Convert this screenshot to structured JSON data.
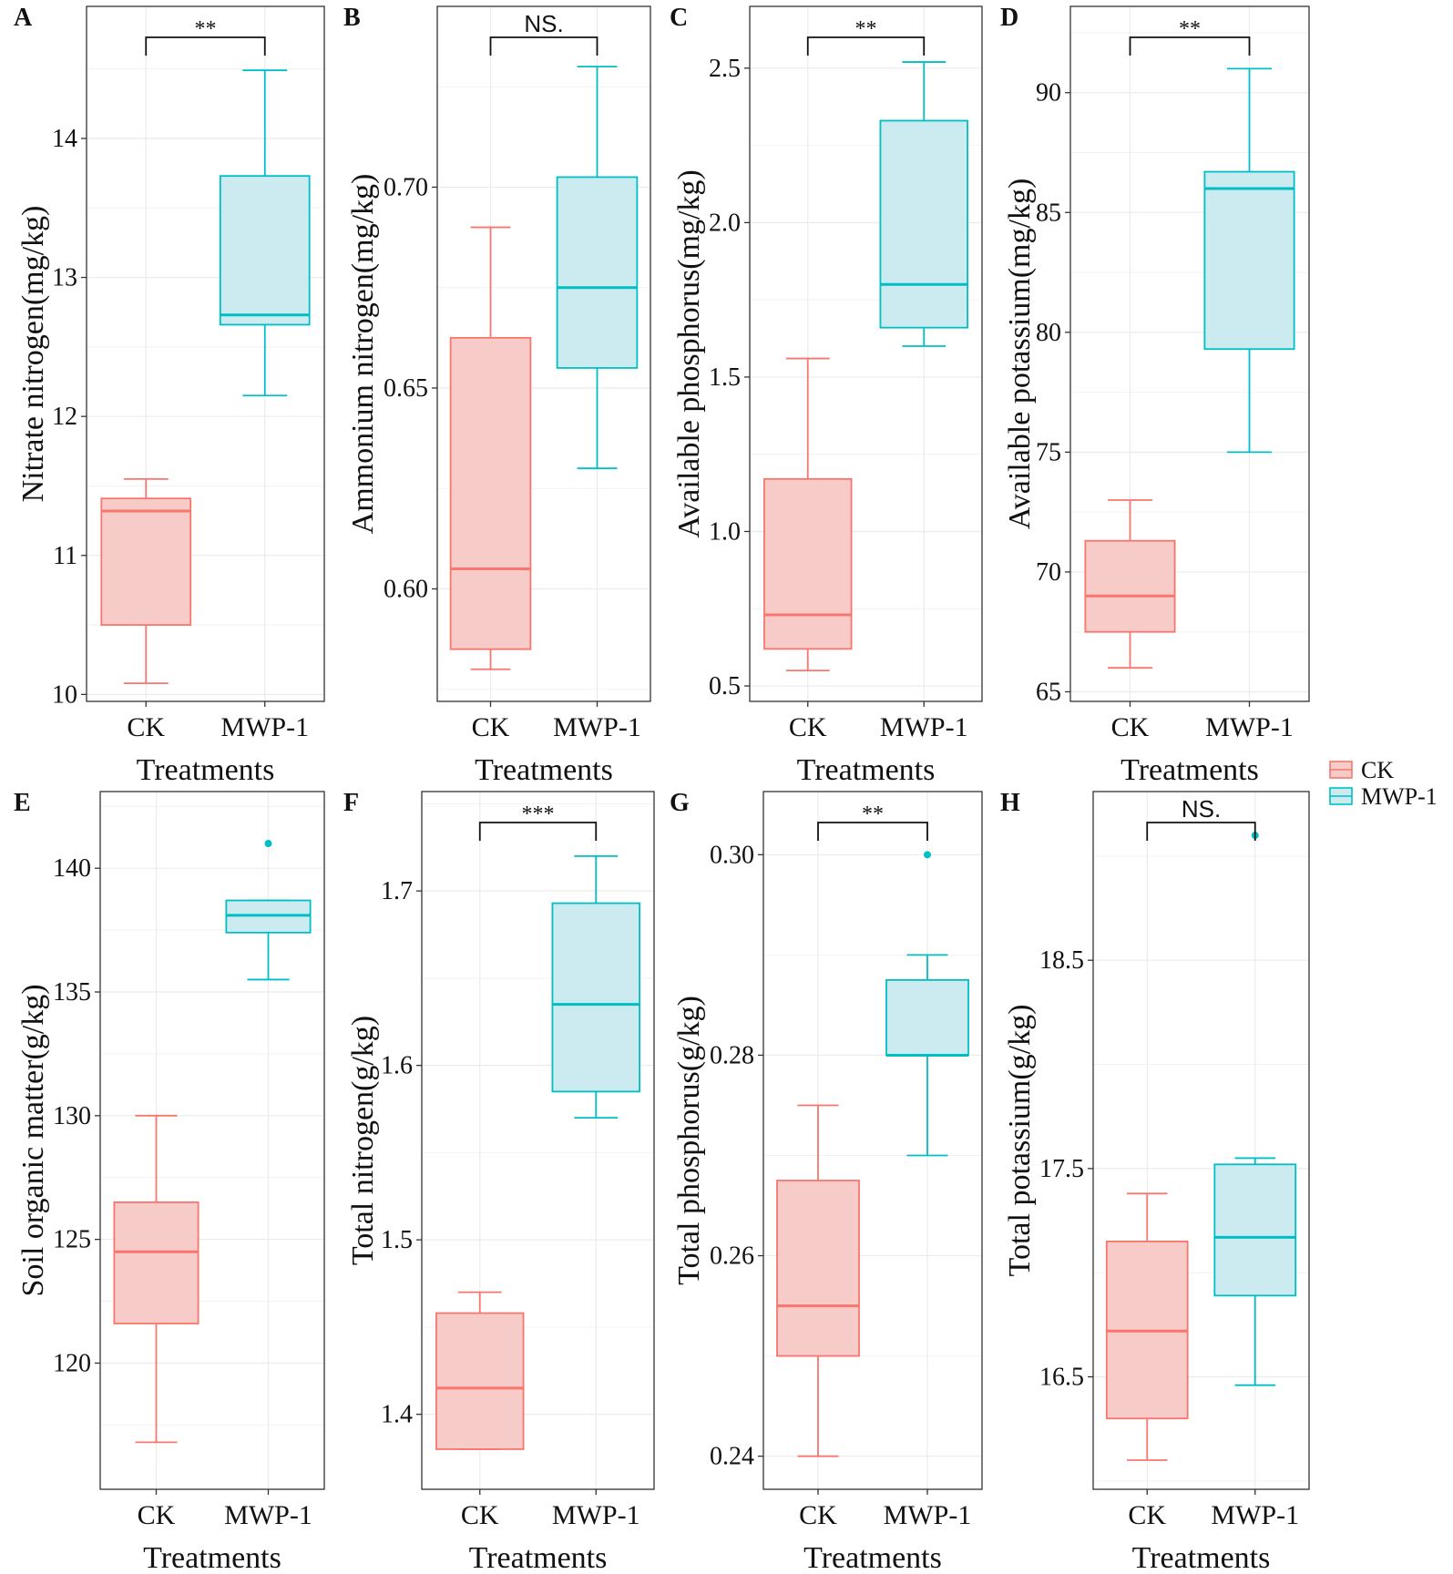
{
  "figure": {
    "legend": {
      "entries": [
        {
          "label": "CK",
          "color": "#F8766D",
          "fill": "#F7CBC7"
        },
        {
          "label": "MWP-1",
          "color": "#00BFC4",
          "fill": "#CCEBF0"
        }
      ],
      "placement": "right-middle"
    }
  },
  "chart_data": [
    {
      "panel": "A",
      "type": "box",
      "ylabel": "Nitrate nitrogen(mg/kg)",
      "xlabel": "Treatments",
      "categories": [
        "CK",
        "MWP-1"
      ],
      "ylim": [
        9.95,
        14.95
      ],
      "yticks": [
        10,
        11,
        12,
        13,
        14
      ],
      "significance": "**",
      "boxes": [
        {
          "name": "CK",
          "min": 10.08,
          "q1": 10.5,
          "median": 11.32,
          "q3": 11.41,
          "max": 11.55,
          "outliers": []
        },
        {
          "name": "MWP-1",
          "min": 12.15,
          "q1": 12.66,
          "median": 12.73,
          "q3": 13.73,
          "max": 14.49,
          "outliers": []
        }
      ]
    },
    {
      "panel": "B",
      "type": "box",
      "ylabel": "Ammonium nitrogen(mg/kg)",
      "xlabel": "Treatments",
      "categories": [
        "CK",
        "MWP-1"
      ],
      "ylim": [
        0.572,
        0.745
      ],
      "yticks": [
        0.6,
        0.65,
        0.7
      ],
      "tick_labels": [
        "0.60",
        "0.65",
        "0.70"
      ],
      "significance": "NS.",
      "boxes": [
        {
          "name": "CK",
          "min": 0.58,
          "q1": 0.585,
          "median": 0.605,
          "q3": 0.6625,
          "max": 0.69,
          "outliers": []
        },
        {
          "name": "MWP-1",
          "min": 0.63,
          "q1": 0.655,
          "median": 0.675,
          "q3": 0.7025,
          "max": 0.73,
          "outliers": []
        }
      ]
    },
    {
      "panel": "C",
      "type": "box",
      "ylabel": "Available phosphorus(mg/kg)",
      "xlabel": "Treatments",
      "categories": [
        "CK",
        "MWP-1"
      ],
      "ylim": [
        0.45,
        2.7
      ],
      "yticks": [
        0.5,
        1.0,
        1.5,
        2.0,
        2.5
      ],
      "tick_labels": [
        "0.5",
        "1.0",
        "1.5",
        "2.0",
        "2.5"
      ],
      "significance": "**",
      "boxes": [
        {
          "name": "CK",
          "min": 0.55,
          "q1": 0.62,
          "median": 0.73,
          "q3": 1.17,
          "max": 1.56,
          "outliers": []
        },
        {
          "name": "MWP-1",
          "min": 1.6,
          "q1": 1.66,
          "median": 1.8,
          "q3": 2.33,
          "max": 2.52,
          "outliers": []
        }
      ]
    },
    {
      "panel": "D",
      "type": "box",
      "ylabel": "Available potassium(mg/kg)",
      "xlabel": "Treatments",
      "categories": [
        "CK",
        "MWP-1"
      ],
      "ylim": [
        64.6,
        93.6
      ],
      "yticks": [
        65,
        70,
        75,
        80,
        85,
        90
      ],
      "significance": "**",
      "boxes": [
        {
          "name": "CK",
          "min": 66,
          "q1": 67.5,
          "median": 69,
          "q3": 71.3,
          "max": 73,
          "outliers": []
        },
        {
          "name": "MWP-1",
          "min": 75,
          "q1": 79.3,
          "median": 86,
          "q3": 86.7,
          "max": 91,
          "outliers": []
        }
      ]
    },
    {
      "panel": "E",
      "type": "box",
      "ylabel": "Soil organic matter(g/kg)",
      "xlabel": "Treatments",
      "categories": [
        "CK",
        "MWP-1"
      ],
      "ylim": [
        114.9,
        143.1
      ],
      "yticks": [
        120,
        125,
        130,
        135,
        140
      ],
      "significance": "",
      "boxes": [
        {
          "name": "CK",
          "min": 116.8,
          "q1": 121.6,
          "median": 124.5,
          "q3": 126.5,
          "max": 130,
          "outliers": []
        },
        {
          "name": "MWP-1",
          "min": 135.5,
          "q1": 137.4,
          "median": 138.1,
          "q3": 138.7,
          "max": 138.7,
          "outliers": [
            141
          ]
        }
      ]
    },
    {
      "panel": "F",
      "type": "box",
      "ylabel": "Total nitrogen(g/kg)",
      "xlabel": "Treatments",
      "categories": [
        "CK",
        "MWP-1"
      ],
      "ylim": [
        1.357,
        1.757
      ],
      "yticks": [
        1.4,
        1.5,
        1.6,
        1.7
      ],
      "tick_labels": [
        "1.4",
        "1.5",
        "1.6",
        "1.7"
      ],
      "significance": "***",
      "boxes": [
        {
          "name": "CK",
          "min": 1.38,
          "q1": 1.38,
          "median": 1.415,
          "q3": 1.458,
          "max": 1.47,
          "outliers": []
        },
        {
          "name": "MWP-1",
          "min": 1.57,
          "q1": 1.585,
          "median": 1.635,
          "q3": 1.693,
          "max": 1.72,
          "outliers": []
        }
      ]
    },
    {
      "panel": "G",
      "type": "box",
      "ylabel": "Total phosphorus(g/kg)",
      "xlabel": "Treatments",
      "categories": [
        "CK",
        "MWP-1"
      ],
      "ylim": [
        0.2367,
        0.3063
      ],
      "yticks": [
        0.24,
        0.26,
        0.28,
        0.3
      ],
      "tick_labels": [
        "0.24",
        "0.26",
        "0.28",
        "0.30"
      ],
      "significance": "**",
      "boxes": [
        {
          "name": "CK",
          "min": 0.24,
          "q1": 0.25,
          "median": 0.255,
          "q3": 0.2675,
          "max": 0.275,
          "outliers": []
        },
        {
          "name": "MWP-1",
          "min": 0.27,
          "q1": 0.28,
          "median": 0.28,
          "q3": 0.2875,
          "max": 0.29,
          "outliers": [
            0.3
          ]
        }
      ]
    },
    {
      "panel": "H",
      "type": "box",
      "ylabel": "Total potassium(g/kg)",
      "xlabel": "Treatments",
      "categories": [
        "CK",
        "MWP-1"
      ],
      "ylim": [
        15.96,
        19.31
      ],
      "yticks": [
        16.5,
        17.5,
        18.5
      ],
      "tick_labels": [
        "16.5",
        "17.5",
        "18.5"
      ],
      "significance": "NS.",
      "boxes": [
        {
          "name": "CK",
          "min": 16.1,
          "q1": 16.3,
          "median": 16.72,
          "q3": 17.15,
          "max": 17.38,
          "outliers": []
        },
        {
          "name": "MWP-1",
          "min": 16.46,
          "q1": 16.89,
          "median": 17.17,
          "q3": 17.52,
          "max": 17.55,
          "outliers": [
            19.1
          ]
        }
      ]
    }
  ]
}
